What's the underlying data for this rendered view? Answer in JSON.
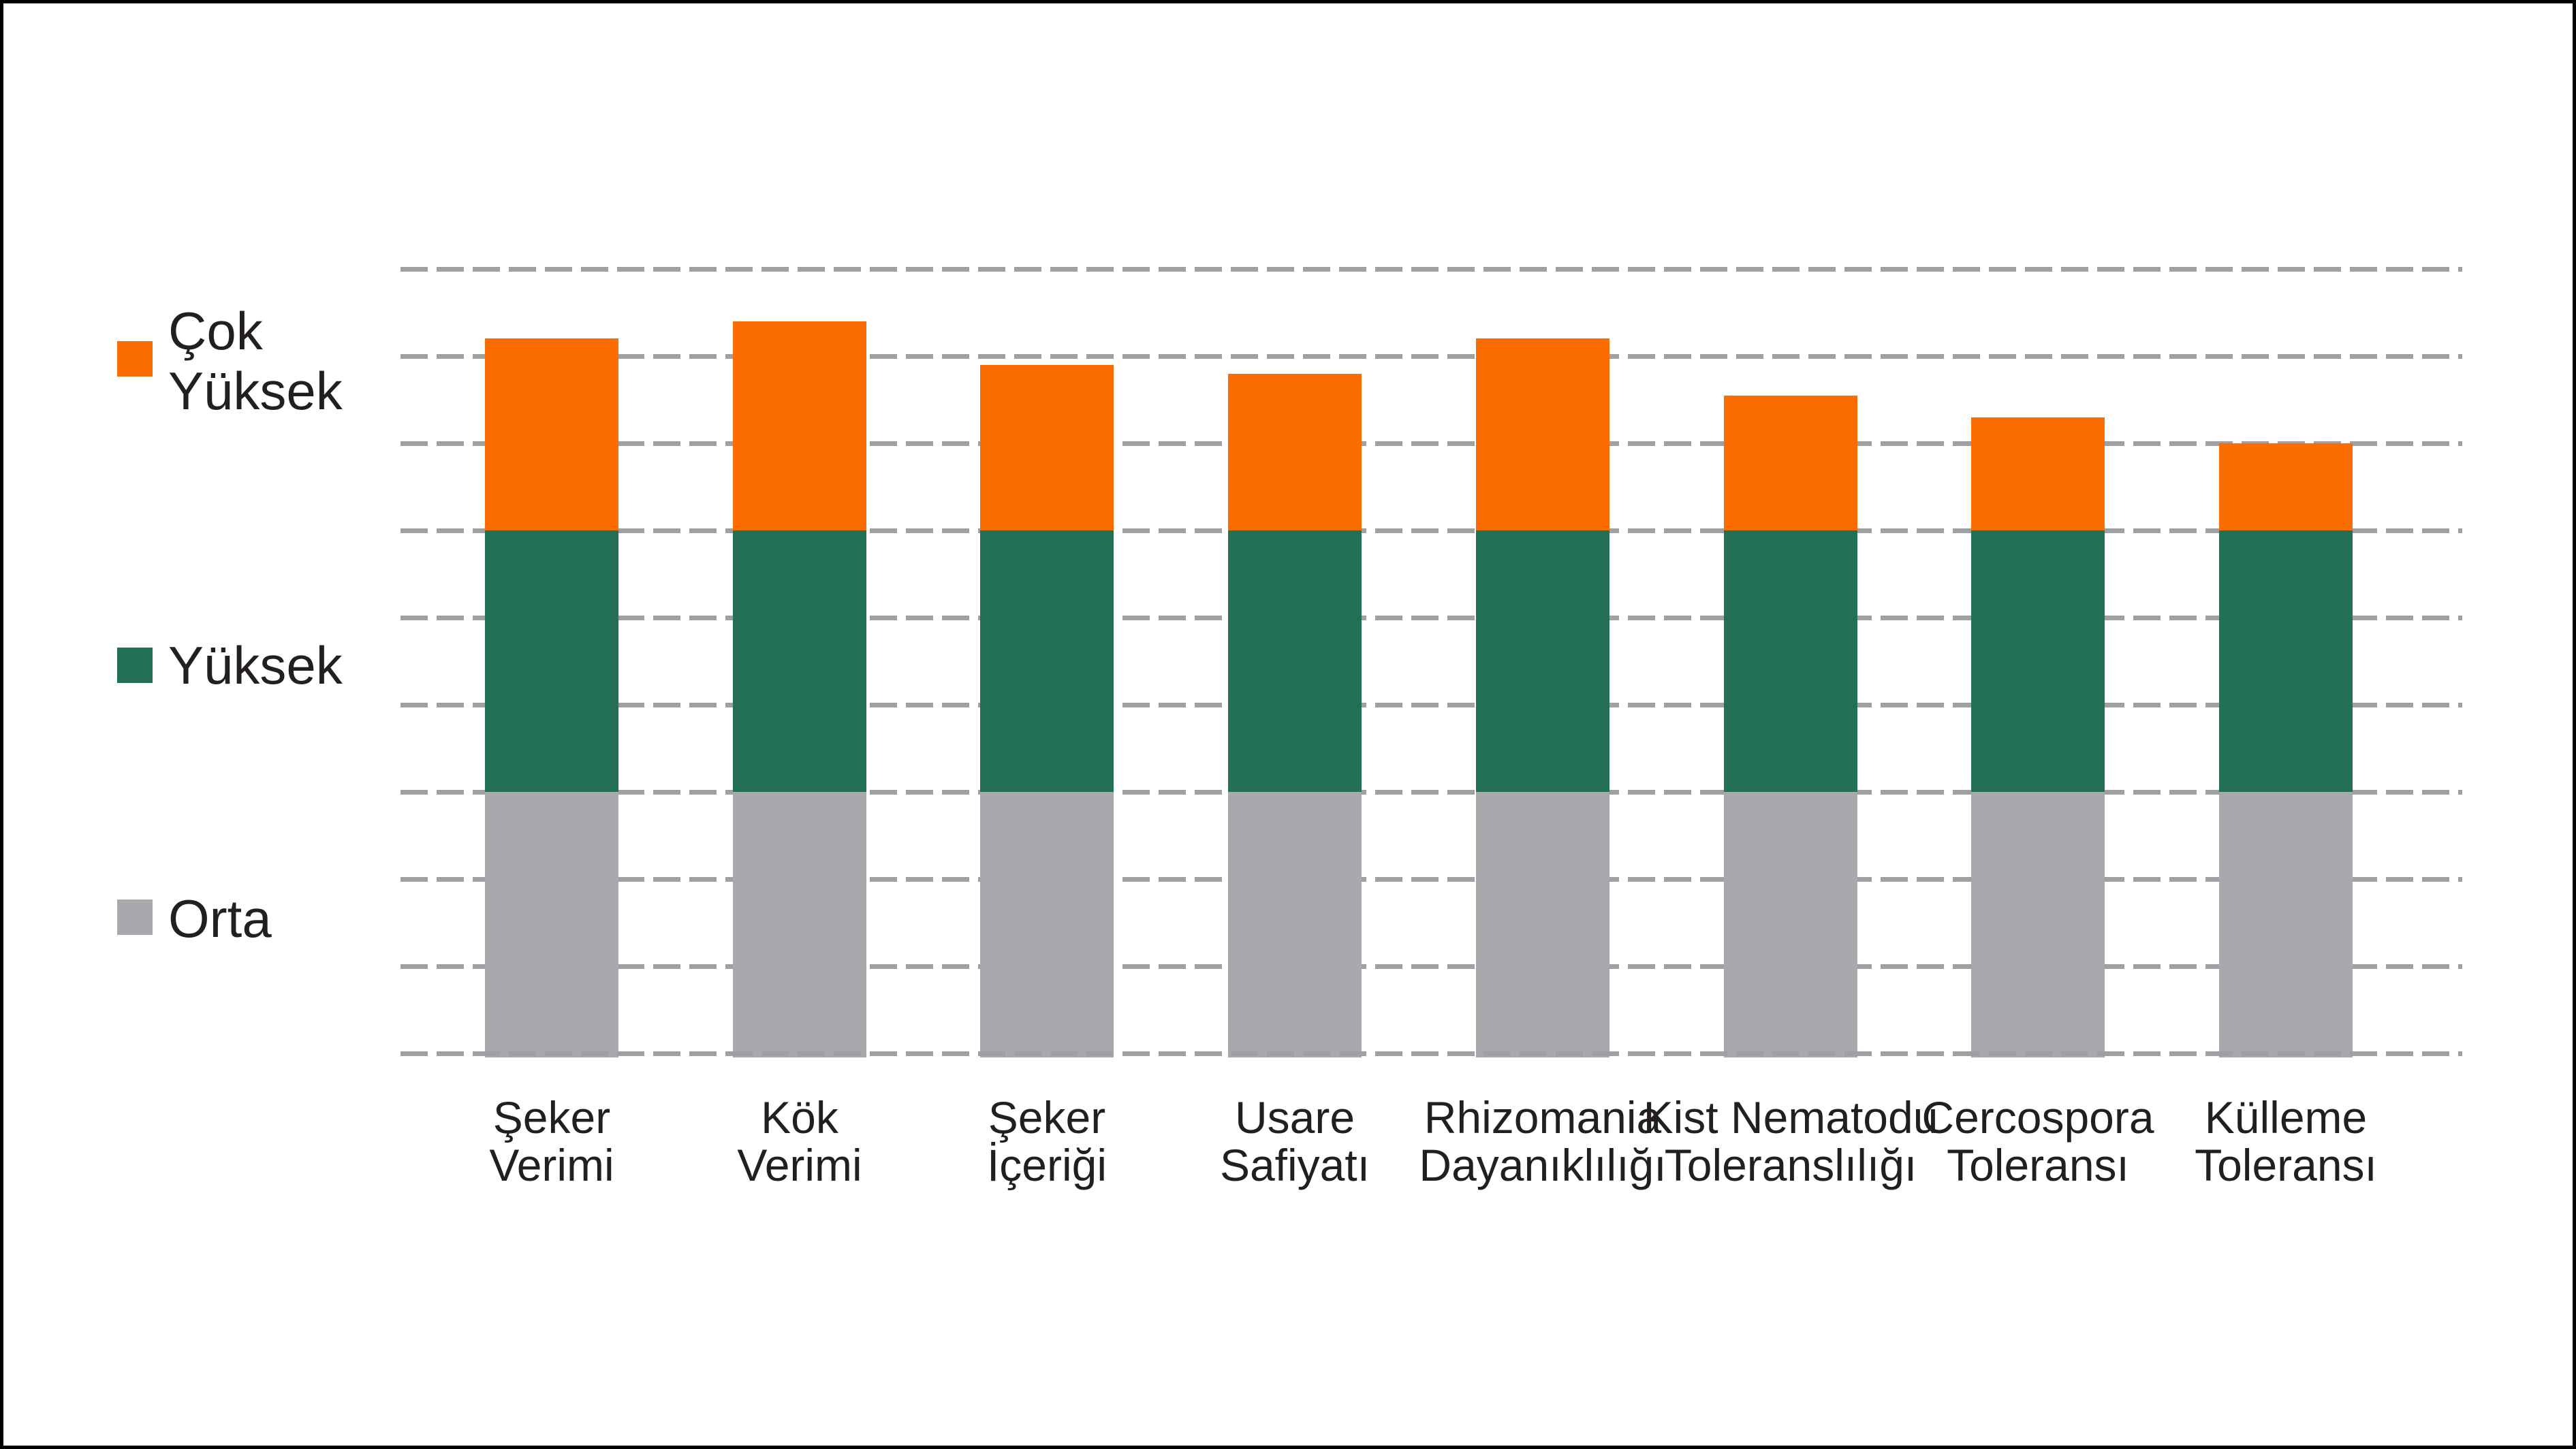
{
  "chart_data": {
    "type": "bar",
    "stacked": true,
    "title": "",
    "xlabel": "",
    "ylabel": "",
    "categories": [
      "Şeker Verimi",
      "Kök Verimi",
      "Şeker İçeriği",
      "Usare Safiyatı",
      "Rhizomania Dayanıklılığı",
      "Kist Nematodu Toleranslılığı",
      "Cercospora Toleransı",
      "Külleme Toleransı"
    ],
    "category_label_lines": [
      [
        "Şeker",
        "Verimi"
      ],
      [
        "Kök",
        "Verimi"
      ],
      [
        "Şeker",
        "İçeriği"
      ],
      [
        "Usare",
        "Safiyatı"
      ],
      [
        "Rhizomania",
        "Dayanıklılığı"
      ],
      [
        "Kist Nematodu",
        "Toleranslılığı"
      ],
      [
        "Cercospora",
        "Toleransı"
      ],
      [
        "Külleme",
        "Toleransı"
      ]
    ],
    "series": [
      {
        "name": "Orta",
        "color": "#A7A9AC",
        "values": [
          3,
          3,
          3,
          3,
          3,
          3,
          3,
          3
        ]
      },
      {
        "name": "Yüksek",
        "color": "#247056",
        "values": [
          3,
          3,
          3,
          3,
          3,
          3,
          3,
          3
        ]
      },
      {
        "name": "Çok Yüksek",
        "color": "#FB6D00",
        "values": [
          2.2,
          2.4,
          1.9,
          1.8,
          2.2,
          1.55,
          1.3,
          1.0
        ]
      }
    ],
    "totals": [
      8.2,
      8.4,
      7.9,
      7.8,
      8.2,
      7.55,
      7.3,
      7.0
    ],
    "value_axis": {
      "min": 0,
      "max": 9,
      "gridline_interval": 1,
      "gridline_count": 10,
      "tick_labels_visible": false,
      "grid_style": "dashed"
    },
    "legend": {
      "position": "left",
      "items": [
        {
          "label": "Çok Yüksek",
          "label_lines": [
            "Çok",
            "Yüksek"
          ],
          "color": "#FB6D00"
        },
        {
          "label": "Yüksek",
          "label_lines": [
            "Yüksek"
          ],
          "color": "#247056"
        },
        {
          "label": "Orta",
          "label_lines": [
            "Orta"
          ],
          "color": "#A7A9AC"
        }
      ]
    }
  }
}
